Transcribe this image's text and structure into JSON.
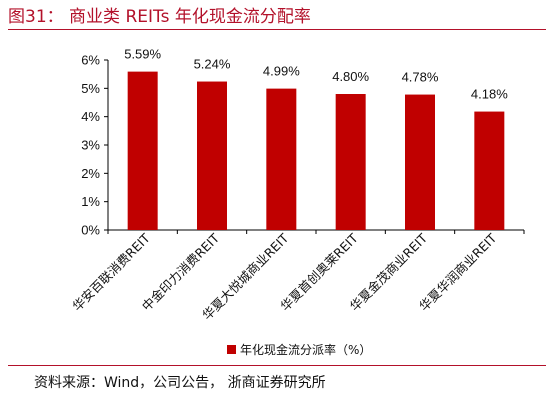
{
  "figure": {
    "title": "图31：  商业类 REITs 年化现金流分配率",
    "source": "资料来源：Wind，公司公告，  浙商证券研究所"
  },
  "colors": {
    "accent": "#b3112a",
    "bar": "#c00000",
    "axis": "#000000"
  },
  "chart_data": {
    "type": "bar",
    "categories": [
      "华安百联消费REIT",
      "中金印力消费REIT",
      "华夏大悦城商业REIT",
      "华夏首创奥莱REIT",
      "华夏金茂商业REIT",
      "华夏华润商业REIT"
    ],
    "series": [
      {
        "name": "年化现金流分派率（%）",
        "values": [
          5.59,
          5.24,
          4.99,
          4.8,
          4.78,
          4.18
        ]
      }
    ],
    "data_labels": [
      "5.59%",
      "5.24%",
      "4.99%",
      "4.80%",
      "4.78%",
      "4.18%"
    ],
    "yticks": [
      0,
      1,
      2,
      3,
      4,
      5,
      6
    ],
    "ytick_labels": [
      "0%",
      "1%",
      "2%",
      "3%",
      "4%",
      "5%",
      "6%"
    ],
    "ylim": [
      0,
      6
    ],
    "grid": false,
    "legend_position": "bottom"
  }
}
